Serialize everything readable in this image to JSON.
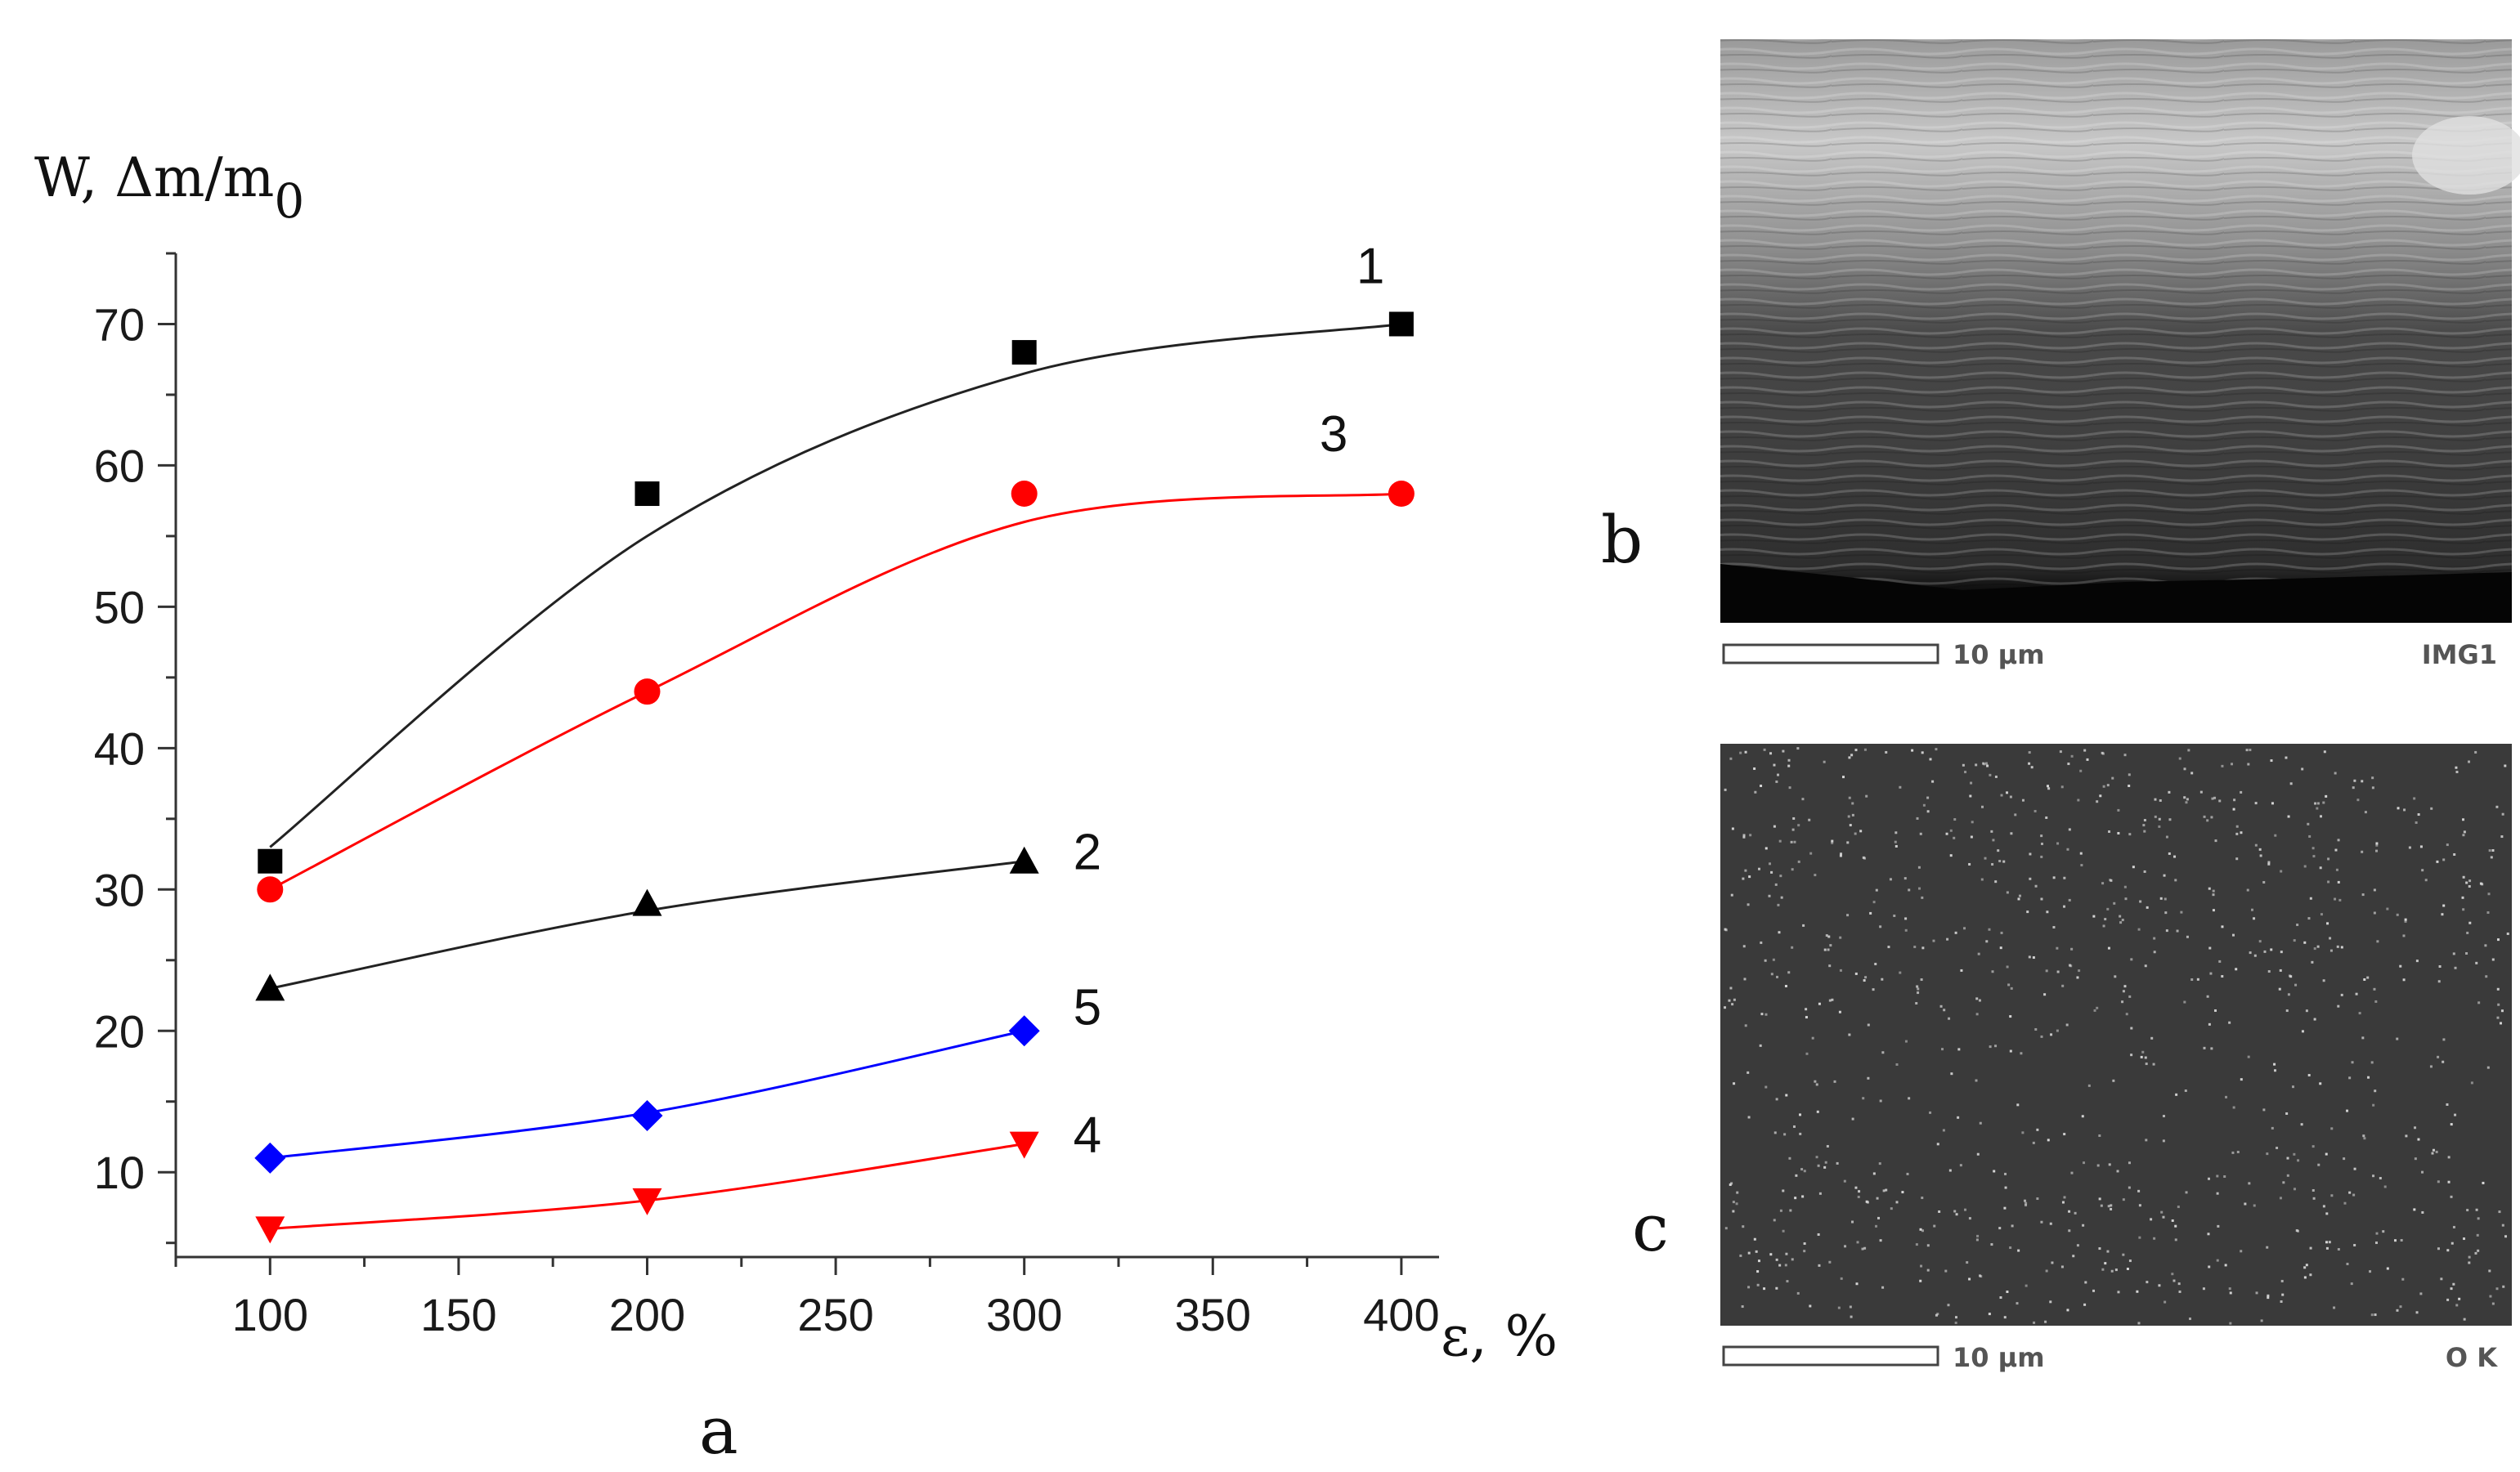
{
  "chart_data": {
    "type": "scatter",
    "xlabel": "ε, %",
    "ylabel": "W, Δm/m",
    "ylabel_sub": "0",
    "panel_label": "a",
    "xlim": [
      75,
      410
    ],
    "ylim": [
      4,
      75
    ],
    "xticks": [
      100,
      150,
      200,
      250,
      300,
      350,
      400
    ],
    "yticks": [
      10,
      20,
      30,
      40,
      50,
      60,
      70
    ],
    "series": [
      {
        "name": "1",
        "color": "#000000",
        "line_color": "#222222",
        "marker": "square",
        "x": [
          100,
          200,
          300,
          400
        ],
        "y": [
          32,
          58,
          68,
          70
        ],
        "fit": [
          33,
          55,
          66.5,
          70
        ]
      },
      {
        "name": "3",
        "color": "#ff0000",
        "line_color": "#ff0000",
        "marker": "circle",
        "x": [
          100,
          200,
          300,
          400
        ],
        "y": [
          30,
          44,
          58,
          58
        ],
        "fit": [
          30,
          44,
          56,
          58
        ]
      },
      {
        "name": "2",
        "color": "#000000",
        "line_color": "#222222",
        "marker": "triangle-up",
        "x": [
          100,
          200,
          300
        ],
        "y": [
          23,
          29,
          32
        ],
        "fit": [
          23,
          28.5,
          32
        ]
      },
      {
        "name": "5",
        "color": "#0000ff",
        "line_color": "#0000ff",
        "marker": "diamond",
        "x": [
          100,
          200,
          300
        ],
        "y": [
          11,
          14,
          20
        ],
        "fit": [
          11,
          14.2,
          20
        ]
      },
      {
        "name": "4",
        "color": "#ff0000",
        "line_color": "#ff0000",
        "marker": "triangle-down",
        "x": [
          100,
          200,
          300
        ],
        "y": [
          6,
          8,
          12
        ],
        "fit": [
          6,
          8,
          12
        ]
      }
    ]
  },
  "panels": {
    "b": {
      "label": "b",
      "scale_text": "10 μm",
      "image_tag": "IMG1"
    },
    "c": {
      "label": "c",
      "scale_text": "10 μm",
      "image_tag": "O K"
    }
  }
}
